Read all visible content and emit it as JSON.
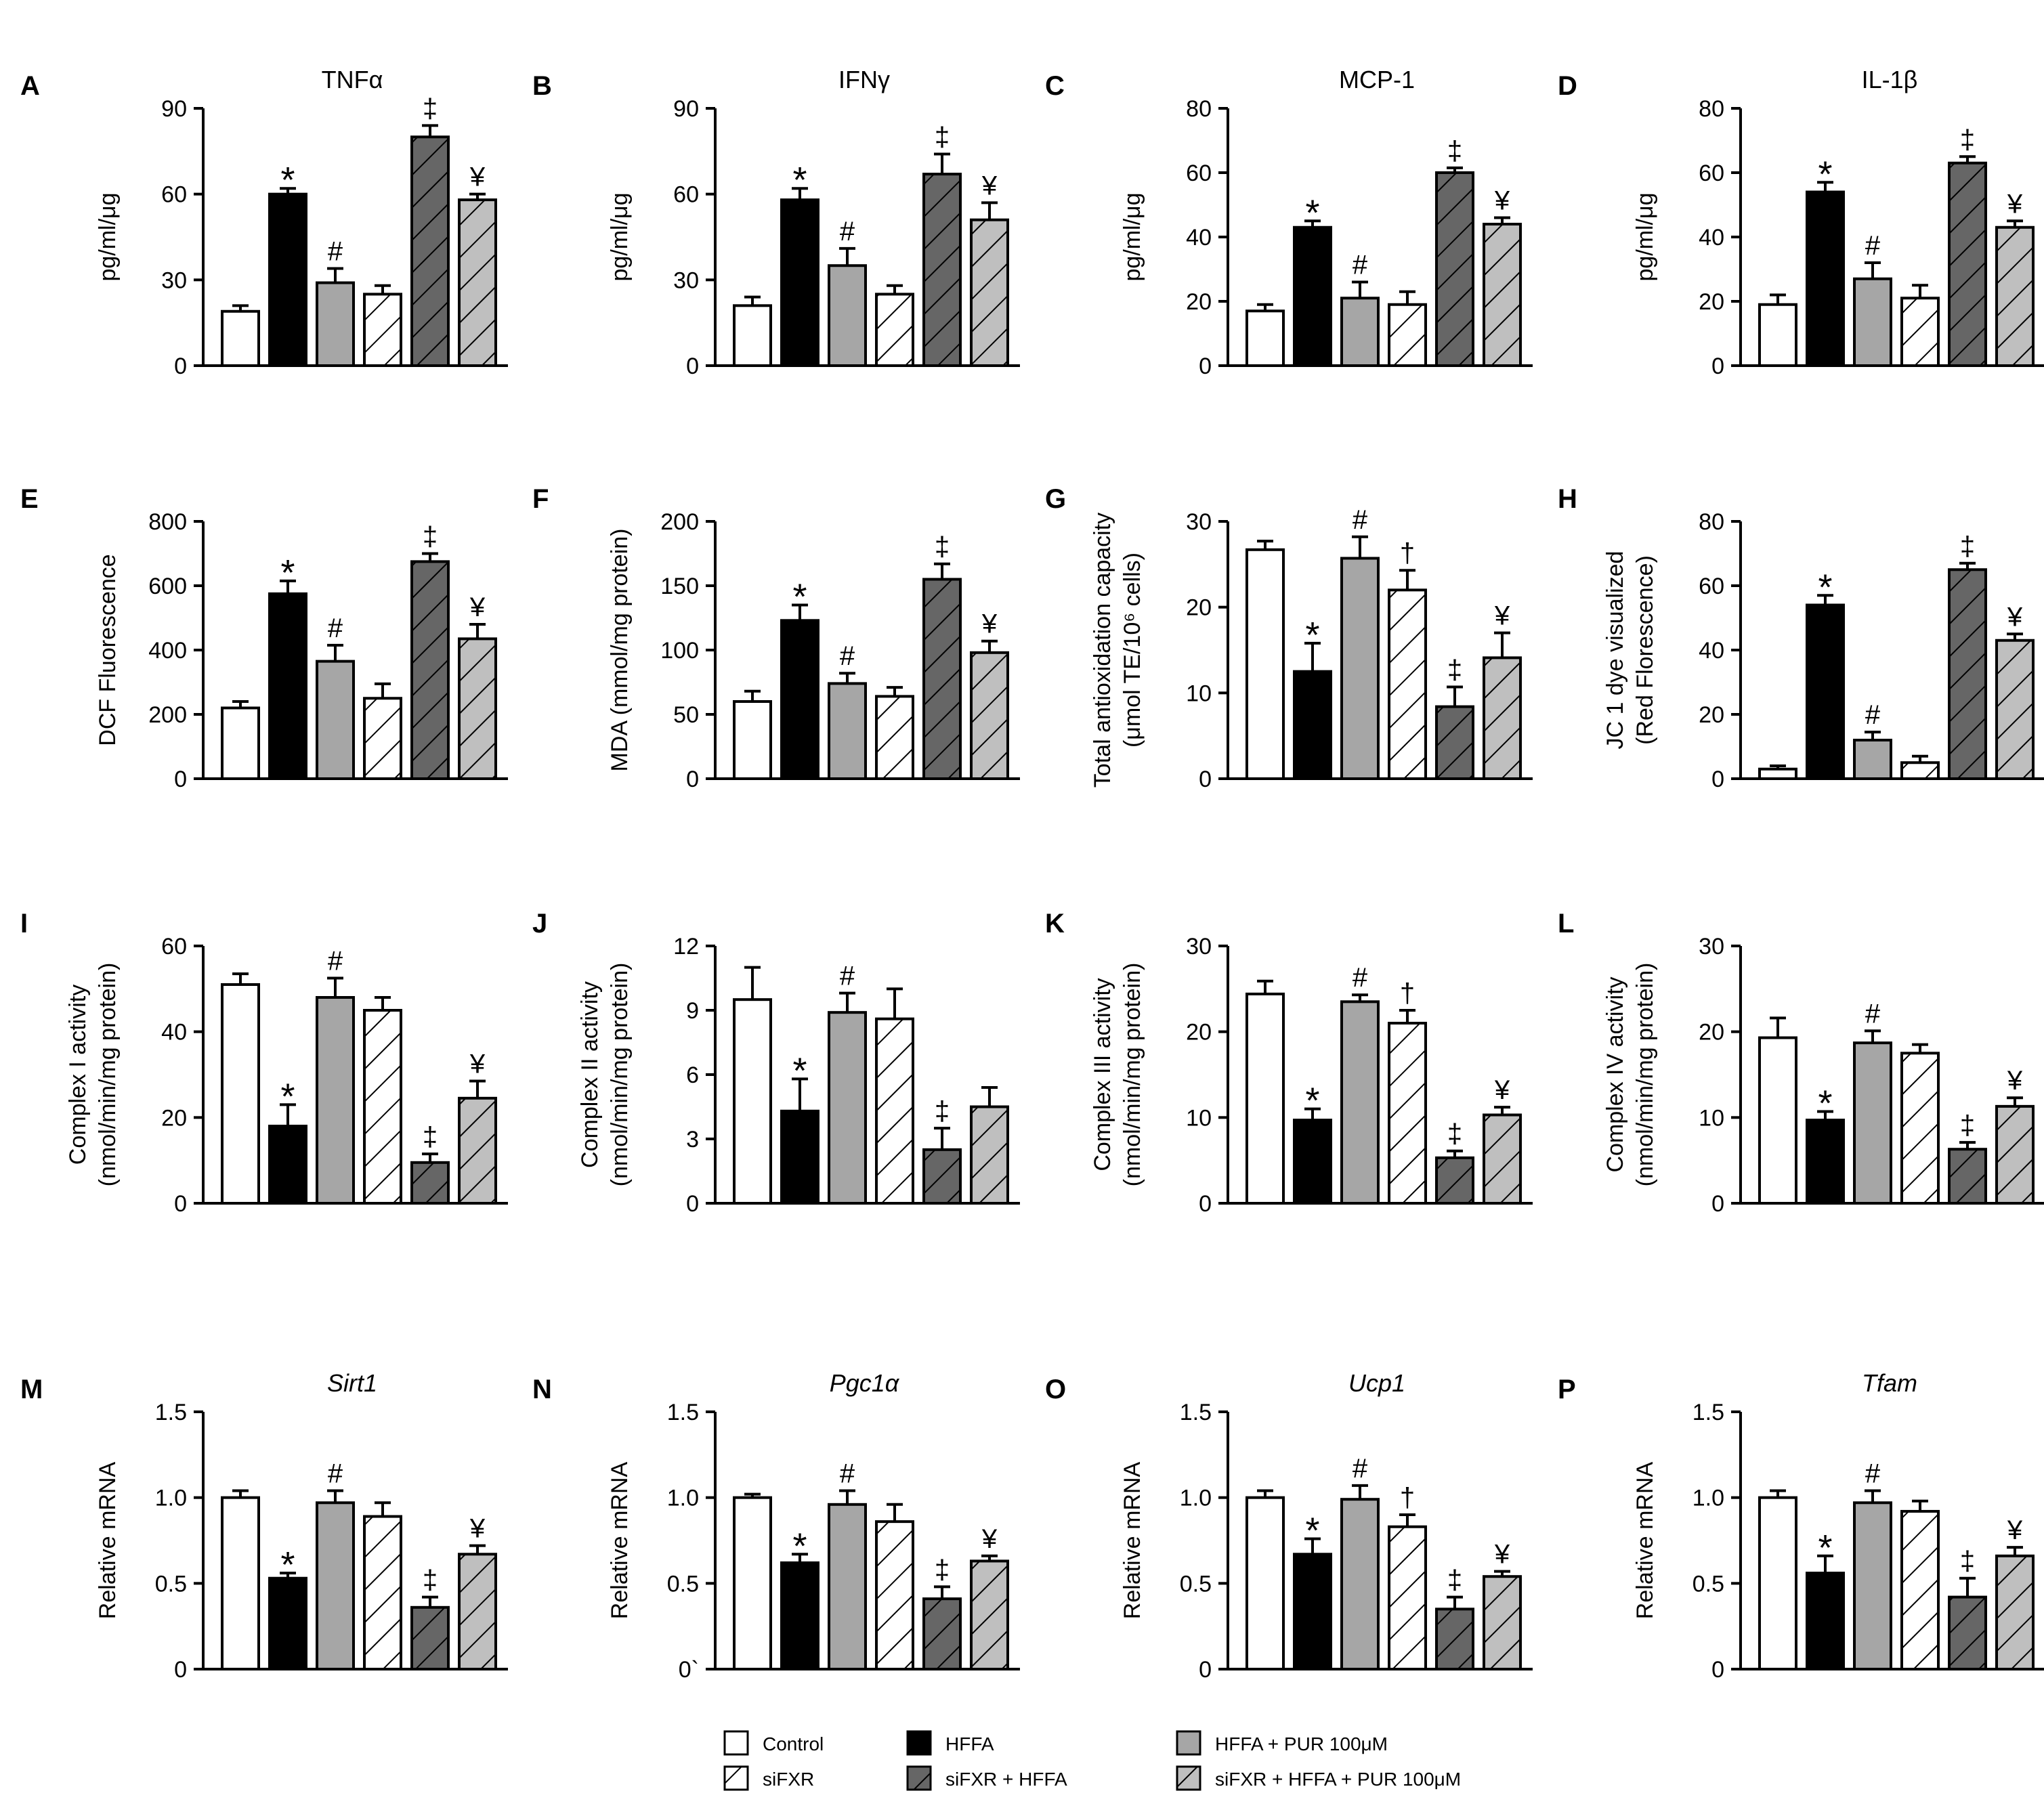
{
  "colors": {
    "control": "#ffffff",
    "hffa": "#000000",
    "hffa_pur": "#a6a6a6",
    "sifxr": "#ffffff",
    "sifxr_hffa": "#666666",
    "sifxr_hffa_pur": "#bfbfbf",
    "stroke": "#000000"
  },
  "legend": [
    {
      "key": "control",
      "label": "Control",
      "hatched": false
    },
    {
      "key": "hffa",
      "label": "HFFA",
      "hatched": false
    },
    {
      "key": "hffa_pur",
      "label": "HFFA  + PUR 100μM",
      "hatched": false
    },
    {
      "key": "sifxr",
      "label": "siFXR",
      "hatched": true
    },
    {
      "key": "sifxr_hffa",
      "label": "siFXR + HFFA",
      "hatched": true
    },
    {
      "key": "sifxr_hffa_pur",
      "label": "siFXR + HFFA + PUR 100μM",
      "hatched": true
    }
  ],
  "chart_data": [
    {
      "letter": "A",
      "type": "bar",
      "title": "TNFα",
      "title_italic": false,
      "ylabel": [
        "pg/ml/μg"
      ],
      "ylim": [
        0,
        90
      ],
      "ticks": [
        0,
        30,
        60,
        90
      ],
      "tick_labels": [
        "0",
        "30",
        "60",
        "90"
      ],
      "categories": [
        "Control",
        "HFFA",
        "HFFA + PUR 100μM",
        "siFXR",
        "siFXR + HFFA",
        "siFXR + HFFA + PUR 100μM"
      ],
      "values": [
        19,
        60,
        29,
        25,
        80,
        58
      ],
      "errors": [
        2,
        2,
        5,
        3,
        4,
        2
      ],
      "marks": [
        "",
        "*",
        "#",
        "",
        "‡",
        "¥"
      ]
    },
    {
      "letter": "B",
      "type": "bar",
      "title": "IFNγ",
      "title_italic": false,
      "ylabel": [
        "pg/ml/μg"
      ],
      "ylim": [
        0,
        90
      ],
      "ticks": [
        0,
        30,
        60,
        90
      ],
      "tick_labels": [
        "0",
        "30",
        "60",
        "90"
      ],
      "categories": [
        "Control",
        "HFFA",
        "HFFA + PUR 100μM",
        "siFXR",
        "siFXR + HFFA",
        "siFXR + HFFA + PUR 100μM"
      ],
      "values": [
        21,
        58,
        35,
        25,
        67,
        51
      ],
      "errors": [
        3,
        4,
        6,
        3,
        7,
        6
      ],
      "marks": [
        "",
        "*",
        "#",
        "",
        "‡",
        "¥"
      ]
    },
    {
      "letter": "C",
      "type": "bar",
      "title": "MCP-1",
      "title_italic": false,
      "ylabel": [
        "pg/ml/μg"
      ],
      "ylim": [
        0,
        80
      ],
      "ticks": [
        0,
        20,
        40,
        60,
        80
      ],
      "tick_labels": [
        "0",
        "20",
        "40",
        "60",
        "80"
      ],
      "categories": [
        "Control",
        "HFFA",
        "HFFA + PUR 100μM",
        "siFXR",
        "siFXR + HFFA",
        "siFXR + HFFA + PUR 100μM"
      ],
      "values": [
        17,
        43,
        21,
        19,
        60,
        44
      ],
      "errors": [
        2,
        2,
        5,
        4,
        1.5,
        2
      ],
      "marks": [
        "",
        "*",
        "#",
        "",
        "‡",
        "¥"
      ]
    },
    {
      "letter": "D",
      "type": "bar",
      "title": "IL-1β",
      "title_italic": false,
      "ylabel": [
        "pg/ml/μg"
      ],
      "ylim": [
        0,
        80
      ],
      "ticks": [
        0,
        20,
        40,
        60,
        80
      ],
      "tick_labels": [
        "0",
        "20",
        "40",
        "60",
        "80"
      ],
      "categories": [
        "Control",
        "HFFA",
        "HFFA + PUR 100μM",
        "siFXR",
        "siFXR + HFFA",
        "siFXR + HFFA + PUR 100μM"
      ],
      "values": [
        19,
        54,
        27,
        21,
        63,
        43
      ],
      "errors": [
        3,
        3,
        5,
        4,
        2,
        2
      ],
      "marks": [
        "",
        "*",
        "#",
        "",
        "‡",
        "¥"
      ]
    },
    {
      "letter": "E",
      "type": "bar",
      "title": "",
      "title_italic": false,
      "ylabel": [
        "DCF Fluorescence"
      ],
      "ylim": [
        0,
        800
      ],
      "ticks": [
        0,
        200,
        400,
        600,
        800
      ],
      "tick_labels": [
        "0",
        "200",
        "400",
        "600",
        "800"
      ],
      "categories": [
        "Control",
        "HFFA",
        "HFFA + PUR 100μM",
        "siFXR",
        "siFXR + HFFA",
        "siFXR + HFFA + PUR 100μM"
      ],
      "values": [
        220,
        575,
        365,
        250,
        675,
        435
      ],
      "errors": [
        20,
        40,
        50,
        45,
        25,
        45
      ],
      "marks": [
        "",
        "*",
        "#",
        "",
        "‡",
        "¥"
      ]
    },
    {
      "letter": "F",
      "type": "bar",
      "title": "",
      "title_italic": false,
      "ylabel": [
        "MDA (mmol/mg protein)"
      ],
      "ylim": [
        0,
        200
      ],
      "ticks": [
        0,
        50,
        100,
        150,
        200
      ],
      "tick_labels": [
        "0",
        "50",
        "100",
        "150",
        "200"
      ],
      "categories": [
        "Control",
        "HFFA",
        "HFFA + PUR 100μM",
        "siFXR",
        "siFXR + HFFA",
        "siFXR + HFFA + PUR 100μM"
      ],
      "values": [
        60,
        123,
        74,
        64,
        155,
        98
      ],
      "errors": [
        8,
        12,
        8,
        7,
        12,
        9
      ],
      "marks": [
        "",
        "*",
        "#",
        "",
        "‡",
        "¥"
      ]
    },
    {
      "letter": "G",
      "type": "bar",
      "title": "",
      "title_italic": false,
      "ylabel": [
        "Total antioxidation capacity",
        "(μmol TE/10⁶ cells)"
      ],
      "ylim": [
        0,
        30
      ],
      "ticks": [
        0,
        10,
        20,
        30
      ],
      "tick_labels": [
        "0",
        "10",
        "20",
        "30"
      ],
      "categories": [
        "Control",
        "HFFA",
        "HFFA + PUR 100μM",
        "siFXR",
        "siFXR + HFFA",
        "siFXR + HFFA + PUR 100μM"
      ],
      "values": [
        26.7,
        12.5,
        25.7,
        22,
        8.4,
        14.1
      ],
      "errors": [
        1,
        3.3,
        2.5,
        2.3,
        2.3,
        2.9
      ],
      "marks": [
        "",
        "*",
        "#",
        "†",
        "‡",
        "¥"
      ]
    },
    {
      "letter": "H",
      "type": "bar",
      "title": "",
      "title_italic": false,
      "ylabel": [
        "JC 1 dye visualized",
        "(Red Florescence)"
      ],
      "ylim": [
        0,
        80
      ],
      "ticks": [
        0,
        20,
        40,
        60,
        80
      ],
      "tick_labels": [
        "0",
        "20",
        "40",
        "60",
        "80"
      ],
      "categories": [
        "Control",
        "HFFA",
        "HFFA + PUR 100μM",
        "siFXR",
        "siFXR + HFFA",
        "siFXR + HFFA + PUR 100μM"
      ],
      "values": [
        3,
        54,
        12,
        5,
        65,
        43
      ],
      "errors": [
        1,
        3,
        2.5,
        2,
        2,
        2
      ],
      "marks": [
        "",
        "*",
        "#",
        "",
        "‡",
        "¥"
      ]
    },
    {
      "letter": "I",
      "type": "bar",
      "title": "",
      "title_italic": false,
      "ylabel": [
        "Complex I activity",
        "(nmol/min/mg protein)"
      ],
      "ylim": [
        0,
        60
      ],
      "ticks": [
        0,
        20,
        40,
        60
      ],
      "tick_labels": [
        "0",
        "20",
        "40",
        "60"
      ],
      "categories": [
        "Control",
        "HFFA",
        "HFFA + PUR 100μM",
        "siFXR",
        "siFXR + HFFA",
        "siFXR + HFFA + PUR 100μM"
      ],
      "values": [
        51,
        18,
        48,
        45,
        9.5,
        24.5
      ],
      "errors": [
        2.5,
        5,
        4.5,
        3,
        2,
        4
      ],
      "marks": [
        "",
        "*",
        "#",
        "",
        "‡",
        "¥"
      ]
    },
    {
      "letter": "J",
      "type": "bar",
      "title": "",
      "title_italic": false,
      "ylabel": [
        "Complex II activity",
        "(nmol/min/mg protein)"
      ],
      "ylim": [
        0,
        12
      ],
      "ticks": [
        0,
        3,
        6,
        9,
        12
      ],
      "tick_labels": [
        "0",
        "3",
        "6",
        "9",
        "12"
      ],
      "categories": [
        "Control",
        "HFFA",
        "HFFA + PUR 100μM",
        "siFXR",
        "siFXR + HFFA",
        "siFXR + HFFA + PUR 100μM"
      ],
      "values": [
        9.5,
        4.3,
        8.9,
        8.6,
        2.5,
        4.5
      ],
      "errors": [
        1.5,
        1.5,
        0.9,
        1.4,
        1,
        0.9
      ],
      "marks": [
        "",
        "*",
        "#",
        "",
        "‡",
        ""
      ]
    },
    {
      "letter": "K",
      "type": "bar",
      "title": "",
      "title_italic": false,
      "ylabel": [
        "Complex III activity",
        "(nmol/min/mg protein)"
      ],
      "ylim": [
        0,
        30
      ],
      "ticks": [
        0,
        10,
        20,
        30
      ],
      "tick_labels": [
        "0",
        "10",
        "20",
        "30"
      ],
      "categories": [
        "Control",
        "HFFA",
        "HFFA + PUR 100μM",
        "siFXR",
        "siFXR + HFFA",
        "siFXR + HFFA + PUR 100μM"
      ],
      "values": [
        24.4,
        9.7,
        23.5,
        21,
        5.3,
        10.3
      ],
      "errors": [
        1.5,
        1.3,
        0.8,
        1.5,
        0.8,
        0.9
      ],
      "marks": [
        "",
        "*",
        "#",
        "†",
        "‡",
        "¥"
      ]
    },
    {
      "letter": "L",
      "type": "bar",
      "title": "",
      "title_italic": false,
      "ylabel": [
        "Complex IV activity",
        "(nmol/min/mg protein)"
      ],
      "ylim": [
        0,
        30
      ],
      "ticks": [
        0,
        10,
        20,
        30
      ],
      "tick_labels": [
        "0",
        "10",
        "20",
        "30"
      ],
      "categories": [
        "Control",
        "HFFA",
        "HFFA + PUR 100μM",
        "siFXR",
        "siFXR + HFFA",
        "siFXR + HFFA + PUR 100μM"
      ],
      "values": [
        19.3,
        9.7,
        18.7,
        17.5,
        6.3,
        11.3
      ],
      "errors": [
        2.3,
        1,
        1.4,
        1,
        0.8,
        1
      ],
      "marks": [
        "",
        "*",
        "#",
        "",
        "‡",
        "¥"
      ]
    },
    {
      "letter": "M",
      "type": "bar",
      "title": "Sirt1",
      "title_italic": true,
      "ylabel": [
        "Relative mRNA"
      ],
      "ylim": [
        0,
        1.5
      ],
      "ticks": [
        0,
        0.5,
        1,
        1.5
      ],
      "tick_labels": [
        "0",
        "0.5",
        "1.0",
        "1.5"
      ],
      "categories": [
        "Control",
        "HFFA",
        "HFFA + PUR 100μM",
        "siFXR",
        "siFXR + HFFA",
        "siFXR + HFFA + PUR 100μM"
      ],
      "values": [
        1.0,
        0.53,
        0.97,
        0.89,
        0.36,
        0.67
      ],
      "errors": [
        0.04,
        0.03,
        0.07,
        0.08,
        0.06,
        0.05
      ],
      "marks": [
        "",
        "*",
        "#",
        "",
        "‡",
        "¥"
      ]
    },
    {
      "letter": "N",
      "type": "bar",
      "title": "Pgc1α",
      "title_italic": true,
      "ylabel": [
        "Relative mRNA"
      ],
      "ylim": [
        0,
        1.5
      ],
      "ticks": [
        0,
        0.5,
        1,
        1.5
      ],
      "tick_labels": [
        "0`",
        "0.5",
        "1.0",
        "1.5"
      ],
      "categories": [
        "Control",
        "HFFA",
        "HFFA + PUR 100μM",
        "siFXR",
        "siFXR + HFFA",
        "siFXR + HFFA + PUR 100μM"
      ],
      "values": [
        1.0,
        0.62,
        0.96,
        0.86,
        0.41,
        0.63
      ],
      "errors": [
        0.02,
        0.05,
        0.08,
        0.1,
        0.07,
        0.03
      ],
      "marks": [
        "",
        "*",
        "#",
        "",
        "‡",
        "¥"
      ]
    },
    {
      "letter": "O",
      "type": "bar",
      "title": "Ucp1",
      "title_italic": true,
      "ylabel": [
        "Relative mRNA"
      ],
      "ylim": [
        0,
        1.5
      ],
      "ticks": [
        0,
        0.5,
        1,
        1.5
      ],
      "tick_labels": [
        "0",
        "0.5",
        "1.0",
        "1.5"
      ],
      "categories": [
        "Control",
        "HFFA",
        "HFFA + PUR 100μM",
        "siFXR",
        "siFXR + HFFA",
        "siFXR + HFFA + PUR 100μM"
      ],
      "values": [
        1.0,
        0.67,
        0.99,
        0.83,
        0.35,
        0.54
      ],
      "errors": [
        0.04,
        0.09,
        0.08,
        0.07,
        0.07,
        0.03
      ],
      "marks": [
        "",
        "*",
        "#",
        "†",
        "‡",
        "¥"
      ]
    },
    {
      "letter": "P",
      "type": "bar",
      "title": "Tfam",
      "title_italic": true,
      "ylabel": [
        "Relative mRNA"
      ],
      "ylim": [
        0,
        1.5
      ],
      "ticks": [
        0,
        0.5,
        1,
        1.5
      ],
      "tick_labels": [
        "0",
        "0.5",
        "1.0",
        "1.5"
      ],
      "categories": [
        "Control",
        "HFFA",
        "HFFA + PUR 100μM",
        "siFXR",
        "siFXR + HFFA",
        "siFXR + HFFA + PUR 100μM"
      ],
      "values": [
        1.0,
        0.56,
        0.97,
        0.92,
        0.42,
        0.66
      ],
      "errors": [
        0.04,
        0.1,
        0.07,
        0.06,
        0.11,
        0.05
      ],
      "marks": [
        "",
        "*",
        "#",
        "",
        "‡",
        "¥"
      ]
    }
  ]
}
